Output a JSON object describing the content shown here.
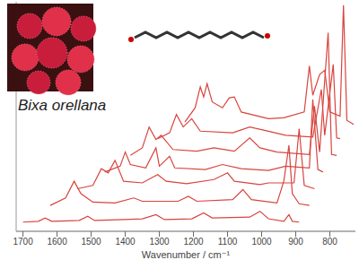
{
  "chart_data": {
    "type": "line",
    "annotations": [
      "Bixa orellana"
    ],
    "x_label": "Wavenumber / cm⁻¹",
    "xlim": [
      1720,
      725
    ],
    "xticks": [
      1700,
      1600,
      1500,
      1400,
      1300,
      1200,
      1100,
      1000,
      900,
      800
    ],
    "ylim": [
      0,
      275
    ],
    "yticks": [],
    "tick_labels": "x",
    "grid": false,
    "series": [
      {
        "color": "#d9443e",
        "x": [
          1700,
          1655,
          1635,
          1615,
          1535,
          1510,
          1490,
          1405,
          1350,
          1310,
          1285,
          1205,
          1170,
          1145,
          1035,
          1005,
          980,
          935,
          920,
          910,
          890
        ],
        "values": [
          11,
          12,
          16,
          12,
          13,
          18,
          13,
          14,
          15,
          20,
          14,
          15,
          22,
          16,
          17,
          24,
          15,
          12,
          20,
          12,
          11
        ]
      },
      {
        "color": "#d9443e",
        "x": [
          1620,
          1575,
          1550,
          1530,
          1495,
          1430,
          1375,
          1350,
          1245,
          1215,
          1190,
          1085,
          1055,
          1030,
          955,
          935,
          920,
          910,
          890,
          860
        ],
        "values": [
          31,
          40,
          60,
          45,
          35,
          34,
          40,
          36,
          36,
          42,
          36,
          38,
          50,
          38,
          34,
          60,
          103,
          45,
          33,
          31
        ]
      },
      {
        "color": "#d9443e",
        "x": [
          1540,
          1495,
          1470,
          1450,
          1430,
          1405,
          1350,
          1305,
          1280,
          1220,
          1140,
          1100,
          1080,
          1005,
          980,
          905,
          890,
          875,
          845
        ],
        "values": [
          51,
          55,
          75,
          70,
          85,
          60,
          58,
          68,
          60,
          57,
          62,
          70,
          60,
          56,
          58,
          58,
          123,
          55,
          51
        ]
      },
      {
        "color": "#d9443e",
        "x": [
          1460,
          1415,
          1400,
          1385,
          1340,
          1310,
          1300,
          1270,
          1255,
          1165,
          1115,
          1060,
          980,
          930,
          860,
          850,
          835,
          820
        ],
        "values": [
          71,
          78,
          95,
          80,
          76,
          100,
          78,
          90,
          76,
          74,
          80,
          75,
          73,
          78,
          76,
          158,
          74,
          71
        ]
      },
      {
        "color": "#d9443e",
        "x": [
          1385,
          1350,
          1330,
          1310,
          1295,
          1260,
          1190,
          1140,
          1080,
          1035,
          1005,
          955,
          860,
          845,
          830,
          805,
          795,
          780
        ],
        "values": [
          91,
          100,
          125,
          110,
          115,
          98,
          96,
          100,
          96,
          112,
          100,
          95,
          92,
          150,
          95,
          238,
          92,
          91
        ]
      },
      {
        "color": "#d9443e",
        "x": [
          1305,
          1270,
          1250,
          1230,
          1205,
          1180,
          1085,
          1035,
          980,
          930,
          850,
          825,
          815,
          790,
          780,
          770
        ],
        "values": [
          111,
          118,
          140,
          125,
          135,
          120,
          118,
          125,
          120,
          115,
          113,
          170,
          115,
          200,
          112,
          111
        ]
      },
      {
        "color": "#d9443e",
        "x": [
          1225,
          1195,
          1180,
          1170,
          1160,
          1145,
          1115,
          1095,
          1080,
          1060,
          980,
          935,
          875,
          860,
          850,
          830,
          815,
          800,
          770,
          760,
          750,
          730
        ],
        "values": [
          131,
          148,
          173,
          161,
          177,
          155,
          148,
          160,
          161,
          143,
          135,
          136,
          143,
          198,
          163,
          188,
          193,
          143,
          138,
          271,
          133,
          128
        ]
      }
    ]
  }
}
